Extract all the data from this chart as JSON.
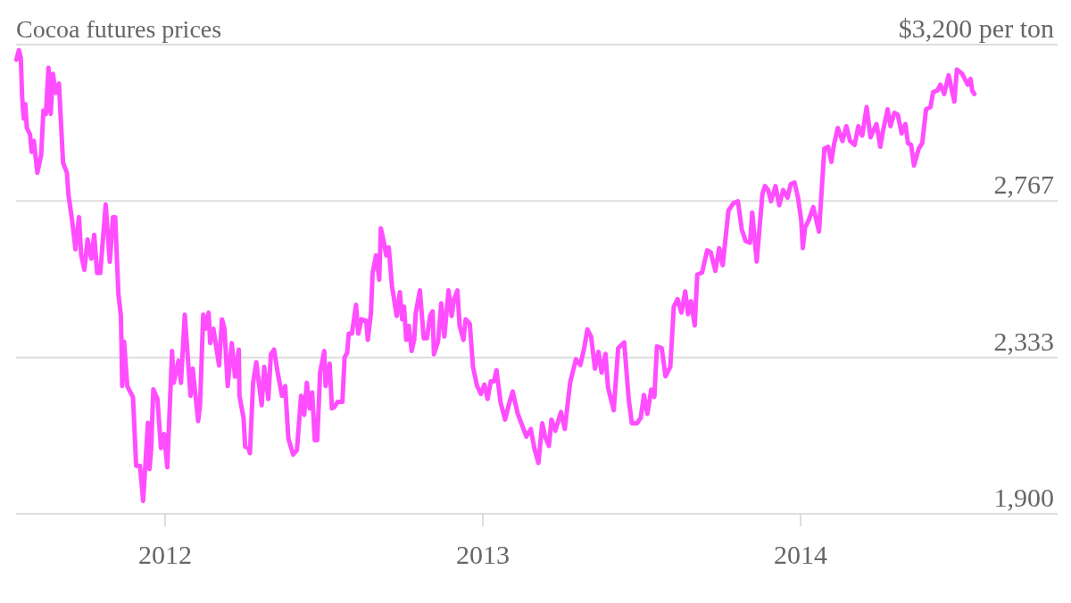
{
  "chart_data": {
    "type": "line",
    "title": "Cocoa futures prices",
    "x": [
      2011.532,
      2011.54,
      2011.546,
      2011.55,
      2011.555,
      2011.56,
      2011.565,
      2011.575,
      2011.58,
      2011.587,
      2011.598,
      2011.61,
      2011.617,
      2011.625,
      2011.633,
      2011.64,
      2011.647,
      2011.656,
      2011.666,
      2011.679,
      2011.691,
      2011.696,
      2011.706,
      2011.718,
      2011.729,
      2011.736,
      2011.746,
      2011.756,
      2011.768,
      2011.777,
      2011.786,
      2011.796,
      2011.813,
      2011.826,
      2011.836,
      2011.843,
      2011.853,
      2011.861,
      2011.865,
      2011.871,
      2011.881,
      2011.899,
      2011.909,
      2011.921,
      2011.931,
      2011.946,
      2011.951,
      2011.956,
      2011.963,
      2011.976,
      2011.987,
      2011.997,
      2012.007,
      2012.022,
      2012.027,
      2012.042,
      2012.05,
      2012.062,
      2012.08,
      2012.087,
      2012.104,
      2012.11,
      2012.12,
      2012.127,
      2012.137,
      2012.142,
      2012.152,
      2012.17,
      2012.179,
      2012.187,
      2012.197,
      2012.21,
      2012.22,
      2012.232,
      2012.234,
      2012.247,
      2012.252,
      2012.262,
      2012.267,
      2012.277,
      2012.287,
      2012.304,
      2012.312,
      2012.325,
      2012.333,
      2012.343,
      2012.353,
      2012.368,
      2012.378,
      2012.388,
      2012.403,
      2012.415,
      2012.428,
      2012.438,
      2012.446,
      2012.455,
      2012.463,
      2012.471,
      2012.479,
      2012.488,
      2012.501,
      2012.505,
      2012.518,
      2012.525,
      2012.533,
      2012.543,
      2012.558,
      2012.565,
      2012.573,
      2012.578,
      2012.588,
      2012.601,
      2012.608,
      2012.618,
      2012.633,
      2012.638,
      2012.648,
      2012.653,
      2012.664,
      2012.674,
      2012.679,
      2012.689,
      2012.696,
      2012.704,
      2012.714,
      2012.729,
      2012.739,
      2012.746,
      2012.752,
      2012.759,
      2012.767,
      2012.776,
      2012.784,
      2012.789,
      2012.802,
      2012.814,
      2012.824,
      2012.834,
      2012.842,
      2012.846,
      2012.859,
      2012.869,
      2012.879,
      2012.892,
      2012.902,
      2012.909,
      2012.92,
      2012.927,
      2012.939,
      2012.946,
      2012.959,
      2012.969,
      2012.982,
      2012.994,
      2013.005,
      2013.015,
      2013.025,
      2013.035,
      2013.043,
      2013.056,
      2013.07,
      2013.082,
      2013.094,
      2013.11,
      2013.121,
      2013.137,
      2013.151,
      2013.163,
      2013.175,
      2013.187,
      2013.196,
      2013.208,
      2013.216,
      2013.228,
      2013.246,
      2013.258,
      2013.275,
      2013.293,
      2013.307,
      2013.319,
      2013.329,
      2013.341,
      2013.353,
      2013.364,
      2013.374,
      2013.386,
      2013.394,
      2013.412,
      2013.426,
      2013.445,
      2013.459,
      2013.469,
      2013.485,
      2013.497,
      2013.507,
      2013.518,
      2013.53,
      2013.54,
      2013.548,
      2013.563,
      2013.575,
      2013.59,
      2013.601,
      2013.613,
      2013.625,
      2013.637,
      2013.646,
      2013.655,
      2013.667,
      2013.675,
      2013.69,
      2013.706,
      2013.717,
      2013.732,
      2013.744,
      2013.755,
      2013.773,
      2013.789,
      2013.803,
      2013.815,
      2013.827,
      2013.841,
      2013.848,
      2013.862,
      2013.88,
      2013.888,
      2013.898,
      2013.907,
      2013.921,
      2013.933,
      2013.945,
      2013.959,
      2013.969,
      2013.981,
      2013.992,
      2014.002,
      2014.007,
      2014.014,
      2014.026,
      2014.04,
      2014.058,
      2014.075,
      2014.087,
      2014.097,
      2014.105,
      2014.117,
      2014.132,
      2014.144,
      2014.156,
      2014.17,
      2014.182,
      2014.194,
      2014.208,
      2014.22,
      2014.239,
      2014.251,
      2014.259,
      2014.274,
      2014.283,
      2014.295,
      2014.306,
      2014.318,
      2014.33,
      2014.338,
      2014.348,
      2014.357,
      2014.372,
      2014.383,
      2014.395,
      2014.409,
      2014.417,
      2014.431,
      2014.44,
      2014.452,
      2014.466,
      2014.484,
      2014.492,
      2014.508,
      2014.526,
      2014.535,
      2014.54,
      2014.547
    ],
    "series": [
      {
        "color": "#ff4dff",
        "values": [
          3158,
          3185,
          3163,
          3057,
          2995,
          3035,
          2969,
          2951,
          2903,
          2933,
          2845,
          2894,
          3017,
          3008,
          3136,
          3008,
          3119,
          3066,
          3092,
          2872,
          2845,
          2783,
          2722,
          2633,
          2722,
          2616,
          2576,
          2660,
          2607,
          2673,
          2567,
          2567,
          2757,
          2598,
          2722,
          2722,
          2510,
          2448,
          2254,
          2377,
          2254,
          2223,
          2033,
          2033,
          1936,
          2152,
          2024,
          2077,
          2245,
          2218,
          2082,
          2121,
          2029,
          2351,
          2263,
          2324,
          2263,
          2452,
          2227,
          2302,
          2157,
          2201,
          2452,
          2413,
          2457,
          2373,
          2413,
          2311,
          2439,
          2413,
          2254,
          2373,
          2280,
          2355,
          2227,
          2165,
          2086,
          2082,
          2068,
          2263,
          2320,
          2201,
          2307,
          2218,
          2342,
          2355,
          2298,
          2227,
          2254,
          2108,
          2064,
          2077,
          2227,
          2174,
          2263,
          2192,
          2236,
          2104,
          2104,
          2293,
          2351,
          2254,
          2316,
          2192,
          2196,
          2210,
          2210,
          2333,
          2346,
          2399,
          2399,
          2479,
          2399,
          2439,
          2435,
          2382,
          2457,
          2567,
          2616,
          2549,
          2691,
          2651,
          2616,
          2638,
          2532,
          2448,
          2514,
          2439,
          2474,
          2382,
          2421,
          2351,
          2382,
          2457,
          2519,
          2386,
          2386,
          2448,
          2461,
          2342,
          2377,
          2483,
          2391,
          2519,
          2448,
          2492,
          2519,
          2421,
          2382,
          2439,
          2426,
          2307,
          2254,
          2232,
          2258,
          2218,
          2267,
          2267,
          2298,
          2208,
          2161,
          2203,
          2239,
          2177,
          2151,
          2114,
          2135,
          2078,
          2041,
          2151,
          2114,
          2088,
          2161,
          2130,
          2182,
          2135,
          2265,
          2328,
          2312,
          2359,
          2411,
          2390,
          2302,
          2349,
          2291,
          2343,
          2250,
          2187,
          2359,
          2375,
          2218,
          2151,
          2151,
          2166,
          2229,
          2177,
          2244,
          2224,
          2364,
          2359,
          2281,
          2307,
          2474,
          2495,
          2458,
          2516,
          2453,
          2489,
          2422,
          2563,
          2568,
          2630,
          2625,
          2573,
          2636,
          2589,
          2740,
          2761,
          2766,
          2688,
          2656,
          2651,
          2735,
          2599,
          2787,
          2808,
          2797,
          2766,
          2808,
          2755,
          2797,
          2776,
          2813,
          2818,
          2776,
          2714,
          2636,
          2693,
          2714,
          2750,
          2682,
          2912,
          2917,
          2875,
          2922,
          2969,
          2933,
          2974,
          2933,
          2922,
          2974,
          2948,
          3027,
          2943,
          2980,
          2917,
          2959,
          3021,
          2974,
          3011,
          3006,
          2954,
          2980,
          2927,
          2922,
          2865,
          2912,
          2927,
          3021,
          3027,
          3068,
          3073,
          3089,
          3063,
          3115,
          3042,
          3131,
          3120,
          3089,
          3105,
          3073,
          3063
        ]
      }
    ],
    "xlim": [
      2011.531,
      2014.809
    ],
    "xticks": [
      2012,
      2013,
      2014
    ],
    "ylim": [
      1900,
      3200
    ],
    "yticks": [
      {
        "value": 1900,
        "label": "1,900"
      },
      {
        "value": 2333,
        "label": "2,333"
      },
      {
        "value": 2767,
        "label": "2,767"
      },
      {
        "value": 3200,
        "label": "$3,200 per ton"
      }
    ],
    "grid": "y",
    "marker": "none",
    "line_style": "solid"
  }
}
